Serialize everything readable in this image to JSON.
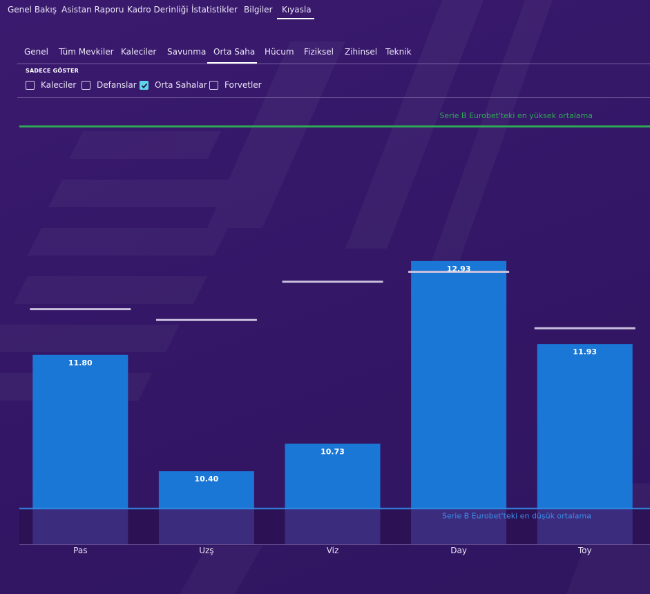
{
  "top_tabs": [
    {
      "label": "Genel Bakış"
    },
    {
      "label": "Asistan Raporu"
    },
    {
      "label": "Kadro Derinliği"
    },
    {
      "label": "İstatistikler"
    },
    {
      "label": "Bilgiler"
    },
    {
      "label": "Kıyasla"
    }
  ],
  "top_active": "Kıyasla",
  "sub_tabs": [
    {
      "label": "Genel"
    },
    {
      "label": "Tüm Mevkiler"
    },
    {
      "label": "Kaleciler"
    },
    {
      "label": "Savunma"
    },
    {
      "label": "Orta Saha"
    },
    {
      "label": "Hücum"
    },
    {
      "label": "Fiziksel"
    },
    {
      "label": "Zihinsel"
    },
    {
      "label": "Teknik"
    }
  ],
  "sub_active": "Orta Saha",
  "filter": {
    "title": "SADECE GÖSTER",
    "options": [
      {
        "label": "Kaleciler",
        "checked": false
      },
      {
        "label": "Defanslar",
        "checked": false
      },
      {
        "label": "Orta Sahalar",
        "checked": true
      },
      {
        "label": "Forvetler",
        "checked": false
      }
    ]
  },
  "chart_data": {
    "type": "bar",
    "categories": [
      "Pas",
      "Uzş",
      "Viz",
      "Day",
      "Toy"
    ],
    "values": [
      11.8,
      10.4,
      10.73,
      12.93,
      11.93
    ],
    "value_labels": [
      "11.80",
      "10.40",
      "10.73",
      "12.93",
      "11.93"
    ],
    "comparison_marks": [
      12.35,
      12.22,
      12.68,
      12.8,
      12.12
    ],
    "reference_lines": [
      {
        "label": "Serie B Eurobet'teki en yüksek ortalama",
        "value": 14.55,
        "color": "#2faa55"
      },
      {
        "label": "Serie B Eurobet'teki en düşük ortalama",
        "value": 9.95,
        "color": "#2f86e0"
      }
    ],
    "ylim": [
      9.52,
      14.55
    ],
    "colors": {
      "bar": "#1b77d6",
      "bar_below": "#3b2c7e",
      "mark": "#c7bfdc",
      "axis_label": "#ece6f7"
    }
  }
}
